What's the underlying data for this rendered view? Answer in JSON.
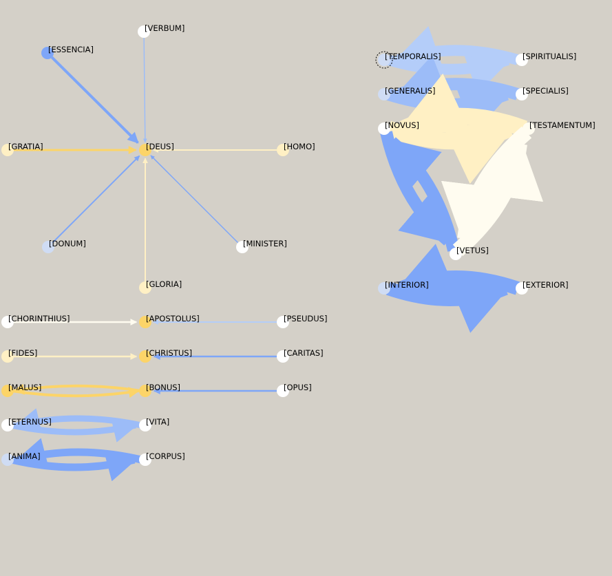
{
  "colors": {
    "background": "#d4d0c8",
    "blue_strong": "#7ea6f8",
    "blue_medium": "#9cbcf8",
    "blue_light": "#b4cdf9",
    "blue_pale": "#cfdcf4",
    "yellow_strong": "#fcd468",
    "yellow_light": "#fff0c4",
    "cream": "#fffcf0",
    "white": "#ffffff"
  },
  "nodes": [
    {
      "id": "verbum",
      "label": "[VERBUM]",
      "fill": "#ffffff"
    },
    {
      "id": "essencia",
      "label": "[ESSENCIA]",
      "fill": "#7ea6f8"
    },
    {
      "id": "deus",
      "label": "[DEUS]",
      "fill": "#fcd468"
    },
    {
      "id": "gratia",
      "label": "[GRATIA]",
      "fill": "#fff0c4"
    },
    {
      "id": "homo",
      "label": "[HOMO]",
      "fill": "#fff0c4"
    },
    {
      "id": "donum",
      "label": "[DONUM]",
      "fill": "#cfdcf4"
    },
    {
      "id": "minister",
      "label": "[MINISTER]",
      "fill": "#ffffff"
    },
    {
      "id": "gloria",
      "label": "[GLORIA]",
      "fill": "#fff0c4"
    },
    {
      "id": "chorinthius",
      "label": "[CHORINTHIUS]",
      "fill": "#ffffff"
    },
    {
      "id": "apostolus",
      "label": "[APOSTOLUS]",
      "fill": "#fcd468"
    },
    {
      "id": "pseudus",
      "label": "[PSEUDUS]",
      "fill": "#ffffff"
    },
    {
      "id": "fides",
      "label": "[FIDES]",
      "fill": "#fff0c4"
    },
    {
      "id": "christus",
      "label": "[CHRISTUS]",
      "fill": "#fcd468"
    },
    {
      "id": "caritas",
      "label": "[CARITAS]",
      "fill": "#ffffff"
    },
    {
      "id": "malus",
      "label": "[MALUS]",
      "fill": "#fcd468"
    },
    {
      "id": "bonus",
      "label": "[BONUS]",
      "fill": "#fcd468"
    },
    {
      "id": "opus",
      "label": "[OPUS]",
      "fill": "#ffffff"
    },
    {
      "id": "eternus",
      "label": "[ETERNUS]",
      "fill": "#ffffff"
    },
    {
      "id": "vita",
      "label": "[VITA]",
      "fill": "#ffffff"
    },
    {
      "id": "anima",
      "label": "[ANIMA]",
      "fill": "#cfdcf4"
    },
    {
      "id": "corpus",
      "label": "[CORPUS]",
      "fill": "#ffffff"
    },
    {
      "id": "temporalis",
      "label": "[TEMPORALIS]",
      "fill": "#cfdcf4",
      "selected": true
    },
    {
      "id": "spiritualis",
      "label": "[SPIRITUALIS]",
      "fill": "#ffffff"
    },
    {
      "id": "generalis",
      "label": "[GENERALIS]",
      "fill": "#cfdcf4"
    },
    {
      "id": "specialis",
      "label": "[SPECIALIS]",
      "fill": "#ffffff"
    },
    {
      "id": "novus",
      "label": "[NOVUS]",
      "fill": "#ffffff"
    },
    {
      "id": "testamentum",
      "label": "[TESTAMENTUM]",
      "fill": "#fffcf0"
    },
    {
      "id": "vetus",
      "label": "[VETUS]",
      "fill": "#ffffff"
    },
    {
      "id": "interior",
      "label": "[INTERIOR]",
      "fill": "#cfdcf4"
    },
    {
      "id": "exterior",
      "label": "[EXTERIOR]",
      "fill": "#ffffff"
    }
  ],
  "edges": [
    {
      "from": "essencia",
      "to": "deus",
      "color": "#7ea6f8",
      "weight": 4
    },
    {
      "from": "verbum",
      "to": "deus",
      "color": "#9cbcf8",
      "weight": 1.5
    },
    {
      "from": "gratia",
      "to": "deus",
      "color": "#fcd468",
      "weight": 3
    },
    {
      "from": "homo",
      "to": "deus",
      "color": "#fff0c4",
      "weight": 2
    },
    {
      "from": "donum",
      "to": "deus",
      "color": "#7ea6f8",
      "weight": 2
    },
    {
      "from": "minister",
      "to": "deus",
      "color": "#7ea6f8",
      "weight": 1.5
    },
    {
      "from": "gloria",
      "to": "deus",
      "color": "#fff0c4",
      "weight": 2
    },
    {
      "from": "chorinthius",
      "to": "apostolus",
      "color": "#fffcf0",
      "weight": 2.5
    },
    {
      "from": "pseudus",
      "to": "apostolus",
      "color": "#b4cdf9",
      "weight": 2
    },
    {
      "from": "fides",
      "to": "christus",
      "color": "#fff0c4",
      "weight": 2.5
    },
    {
      "from": "caritas",
      "to": "christus",
      "color": "#7ea6f8",
      "weight": 2.5
    },
    {
      "from": "opus",
      "to": "bonus",
      "color": "#7ea6f8",
      "weight": 2.5
    },
    {
      "from": "malus",
      "to": "bonus",
      "color": "#fcd468",
      "weight": 4,
      "curve": "double"
    },
    {
      "from": "eternus",
      "to": "vita",
      "color": "#9cbcf8",
      "weight": 9,
      "curve": "double"
    },
    {
      "from": "anima",
      "to": "corpus",
      "color": "#7ea6f8",
      "weight": 11,
      "curve": "double"
    },
    {
      "from": "temporalis",
      "to": "spiritualis",
      "color": "#b4cdf9",
      "weight": 16,
      "curve": "double"
    },
    {
      "from": "generalis",
      "to": "specialis",
      "color": "#9cbcf8",
      "weight": 18,
      "curve": "double"
    },
    {
      "from": "novus",
      "to": "testamentum",
      "color": "#fff0c4",
      "weight": 24,
      "curve": "double"
    },
    {
      "from": "novus",
      "to": "vetus",
      "color": "#7ea6f8",
      "weight": 18,
      "curve": "double"
    },
    {
      "from": "testamentum",
      "to": "vetus",
      "color": "#fffcf0",
      "weight": 22,
      "curve": "double"
    },
    {
      "from": "interior",
      "to": "exterior",
      "color": "#7ea6f8",
      "weight": 20,
      "curve": "double"
    }
  ]
}
